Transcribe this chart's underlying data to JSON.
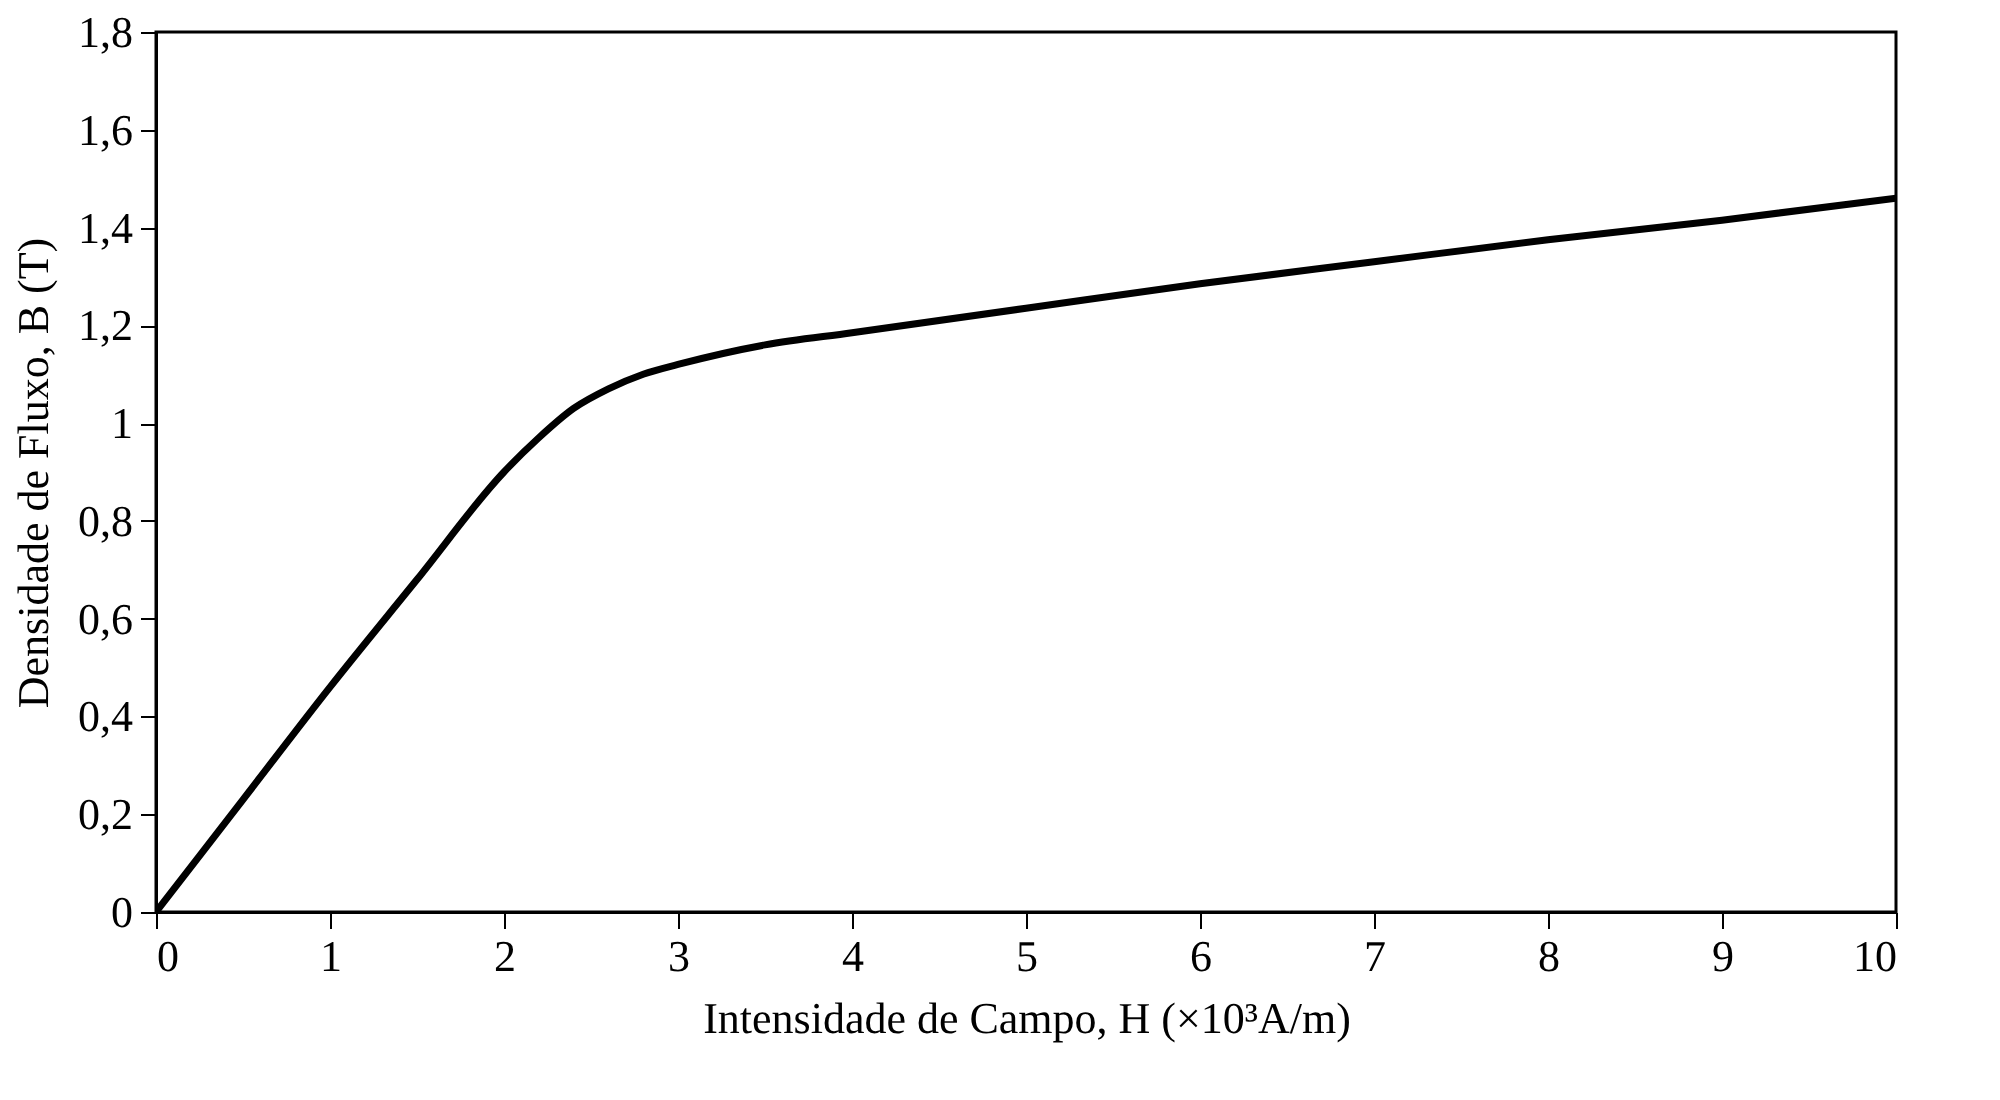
{
  "chart_data": {
    "type": "line",
    "xlabel": "Intensidade de Campo, H (×10³A/m)",
    "ylabel": "Densidade de Fluxo, B (T)",
    "x": [
      0,
      0.5,
      1,
      1.5,
      2,
      2.2,
      2.4,
      2.6,
      2.8,
      3,
      3.5,
      4,
      5,
      6,
      7,
      8,
      9,
      10
    ],
    "series": [
      {
        "color": "#000000",
        "values": [
          0,
          0.23,
          0.46,
          0.68,
          0.9,
          0.97,
          1.03,
          1.07,
          1.1,
          1.12,
          1.16,
          1.185,
          1.235,
          1.285,
          1.33,
          1.375,
          1.415,
          1.46
        ]
      }
    ],
    "xlim": [
      0,
      10
    ],
    "xticks": [
      0,
      1,
      2,
      3,
      4,
      5,
      6,
      7,
      8,
      9,
      10
    ],
    "ylim": [
      0,
      1.8
    ],
    "yticks": [
      0,
      {
        "value": 0.2,
        "label": "0,2"
      },
      {
        "value": 0.4,
        "label": "0,4"
      },
      {
        "value": 0.6,
        "label": "0,6"
      },
      {
        "value": 0.8,
        "label": "0,8"
      },
      1,
      {
        "value": 1.2,
        "label": "1,2"
      },
      {
        "value": 1.4,
        "label": "1,4"
      },
      {
        "value": 1.6,
        "label": "1,6"
      },
      {
        "value": 1.8,
        "label": "1,8"
      }
    ],
    "grid": false,
    "marker": "none",
    "line_style": "solid"
  }
}
